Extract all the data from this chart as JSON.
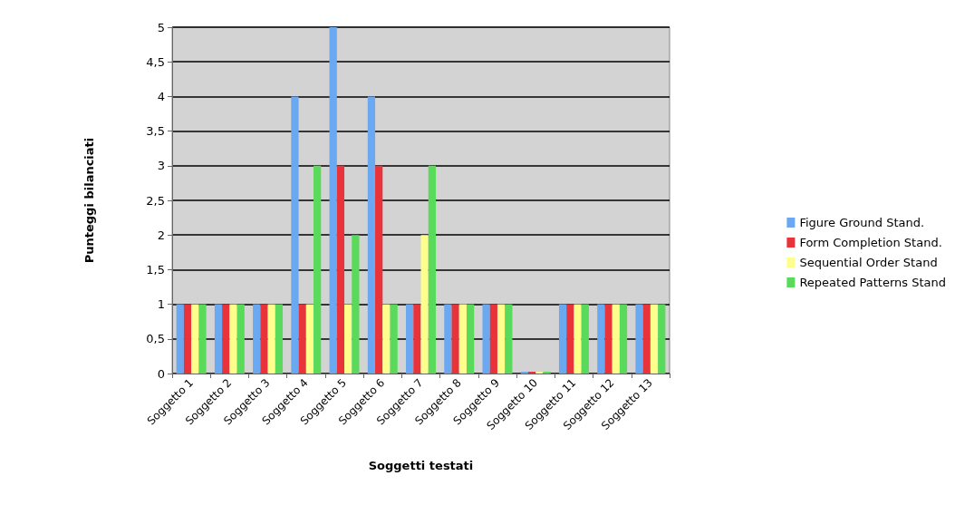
{
  "chart_data": {
    "type": "bar",
    "xlabel": "Soggetti testati",
    "ylabel": "Punteggi bilanciati",
    "categories": [
      "Soggetto 1",
      "Soggetto 2",
      "Soggetto 3",
      "Soggetto 4",
      "Soggetto 5",
      "Soggetto 6",
      "Soggetto 7",
      "Soggetto 8",
      "Soggetto 9",
      "Soggetto 10",
      "Soggetto 11",
      "Soggetto 12",
      "Soggetto 13"
    ],
    "series": [
      {
        "name": "Figure Ground Stand.",
        "color": "#6aa8f2",
        "values": [
          1,
          1,
          1,
          4,
          5,
          4,
          1,
          1,
          1,
          0,
          1,
          1,
          1
        ]
      },
      {
        "name": "Form Completion Stand.",
        "color": "#e8333a",
        "values": [
          1,
          1,
          1,
          1,
          3,
          3,
          1,
          1,
          1,
          0,
          1,
          1,
          1
        ]
      },
      {
        "name": "Sequential Order Stand",
        "color": "#fefe8c",
        "values": [
          1,
          1,
          1,
          1,
          1,
          1,
          2,
          1,
          1,
          0,
          1,
          1,
          1
        ]
      },
      {
        "name": "Repeated Patterns Stand",
        "color": "#5ada5a",
        "values": [
          1,
          1,
          1,
          3,
          2,
          1,
          3,
          1,
          1,
          0,
          1,
          1,
          1
        ]
      }
    ],
    "ylim": [
      0,
      5
    ],
    "yticks": [
      0,
      {
        "value": 0.5,
        "label": "0,5"
      },
      1,
      {
        "value": 1.5,
        "label": "1,5"
      },
      2,
      {
        "value": 2.5,
        "label": "2,5"
      },
      3,
      {
        "value": 3.5,
        "label": "3,5"
      },
      4,
      {
        "value": 4.5,
        "label": "4,5"
      },
      5
    ],
    "grid": "y",
    "legend": "right"
  }
}
